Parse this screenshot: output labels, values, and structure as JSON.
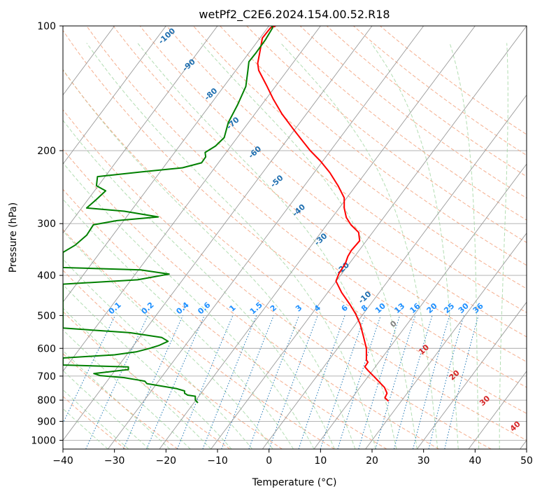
{
  "chart_data": {
    "type": "line",
    "subtype": "skew-T log-p diagram",
    "title": "wetPf2_C2E6.2024.154.00.52.R18",
    "xlabel": "Temperature (°C)",
    "ylabel": "Pressure (hPa)",
    "xlim": [
      -40,
      50
    ],
    "ylim": [
      1050,
      100
    ],
    "y_scale": "log",
    "grid": true,
    "x_ticks": [
      "−40",
      "−30",
      "−20",
      "−10",
      "0",
      "10",
      "20",
      "30",
      "40",
      "50"
    ],
    "y_ticks": [
      "100",
      "200",
      "300",
      "400",
      "500",
      "600",
      "700",
      "800",
      "900",
      "1000"
    ],
    "x_tick_values": [
      -40,
      -30,
      -20,
      -10,
      0,
      10,
      20,
      30,
      40,
      50
    ],
    "y_tick_values": [
      100,
      200,
      300,
      400,
      500,
      600,
      700,
      800,
      900,
      1000
    ],
    "series": [
      {
        "color": "#ff0000",
        "note": "temperature profile (x = temperature in °C at the plotted axis position, p in hPa)",
        "points": [
          [
            23.2,
            805
          ],
          [
            22.5,
            790
          ],
          [
            22.9,
            770
          ],
          [
            22.4,
            745
          ],
          [
            21.7,
            730
          ],
          [
            20.3,
            700
          ],
          [
            19.3,
            680
          ],
          [
            18.6,
            665
          ],
          [
            19.2,
            648
          ],
          [
            18.9,
            640
          ],
          [
            18.9,
            600
          ],
          [
            18.3,
            560
          ],
          [
            17.7,
            525
          ],
          [
            16.8,
            495
          ],
          [
            15.7,
            470
          ],
          [
            14.1,
            440
          ],
          [
            13.0,
            413
          ],
          [
            13.6,
            395
          ],
          [
            14.8,
            375
          ],
          [
            15.3,
            360
          ],
          [
            16.0,
            348
          ],
          [
            17.6,
            330
          ],
          [
            17.4,
            315
          ],
          [
            15.9,
            302
          ],
          [
            15.0,
            290
          ],
          [
            14.6,
            275
          ],
          [
            14.6,
            260
          ],
          [
            13.4,
            243
          ],
          [
            11.8,
            226
          ],
          [
            10.0,
            212
          ],
          [
            8.0,
            200
          ],
          [
            6.3,
            188
          ],
          [
            4.5,
            176
          ],
          [
            2.5,
            163
          ],
          [
            0.8,
            150
          ],
          [
            -0.5,
            139
          ],
          [
            -2.0,
            128
          ],
          [
            -2.2,
            123
          ],
          [
            -1.8,
            116
          ],
          [
            -1.3,
            107
          ],
          [
            0.3,
            101
          ],
          [
            1.3,
            100
          ]
        ]
      },
      {
        "color": "#008000",
        "note": "dewpoint profile (x = temperature in °C at the plotted axis position, p in hPa)",
        "points": [
          [
            -13.8,
            812
          ],
          [
            -14.3,
            800
          ],
          [
            -14.3,
            783
          ],
          [
            -15.8,
            778
          ],
          [
            -16.4,
            770
          ],
          [
            -16.4,
            760
          ],
          [
            -18.0,
            750
          ],
          [
            -23.7,
            730
          ],
          [
            -24.1,
            720
          ],
          [
            -25.5,
            715
          ],
          [
            -28.2,
            706
          ],
          [
            -32.8,
            698
          ],
          [
            -34.0,
            690
          ],
          [
            -27.3,
            675
          ],
          [
            -27.3,
            665
          ],
          [
            -40.0,
            658
          ],
          [
            -40.0,
            633
          ],
          [
            -30.0,
            622
          ],
          [
            -25.8,
            612
          ],
          [
            -23.2,
            600
          ],
          [
            -21.3,
            590
          ],
          [
            -19.6,
            577
          ],
          [
            -20.8,
            565
          ],
          [
            -27.0,
            550
          ],
          [
            -40.0,
            536
          ],
          [
            -40.0,
            420
          ],
          [
            -25.5,
            410
          ],
          [
            -19.4,
            397
          ],
          [
            -24.9,
            388
          ],
          [
            -40.0,
            383
          ],
          [
            -40.0,
            352
          ],
          [
            -37.6,
            338
          ],
          [
            -35.4,
            320
          ],
          [
            -34.1,
            302
          ],
          [
            -29.5,
            295
          ],
          [
            -21.5,
            289
          ],
          [
            -28.1,
            280
          ],
          [
            -35.4,
            275
          ],
          [
            -33.6,
            263
          ],
          [
            -31.7,
            250
          ],
          [
            -33.5,
            243
          ],
          [
            -33.3,
            231
          ],
          [
            -24.6,
            225
          ],
          [
            -16.8,
            220
          ],
          [
            -13.1,
            214
          ],
          [
            -12.3,
            207
          ],
          [
            -12.4,
            202
          ],
          [
            -10.4,
            195
          ],
          [
            -8.7,
            186
          ],
          [
            -7.9,
            171
          ],
          [
            -6.1,
            155
          ],
          [
            -4.5,
            140
          ],
          [
            -4.1,
            128
          ],
          [
            -3.9,
            122
          ],
          [
            -2.5,
            116
          ],
          [
            -0.7,
            108
          ],
          [
            0.7,
            101
          ],
          [
            0.5,
            100
          ]
        ]
      }
    ],
    "annotations": {
      "dry_adiabats": [
        "-100",
        "-90",
        "-80",
        "-70",
        "-60",
        "-50",
        "-40",
        "-30",
        "-20",
        "-10"
      ],
      "mixing_ratio": [
        "0.1",
        "0.2",
        "0.4",
        "0.6",
        "1",
        "1.5",
        "2",
        "3",
        "4",
        "6",
        "8",
        "10",
        "13",
        "16",
        "20",
        "25",
        "30",
        "36"
      ],
      "moist_adiabats": [
        "0",
        "10",
        "20",
        "30",
        "40"
      ]
    },
    "colors": {
      "temperature": "#ff0000",
      "dewpoint": "#008000",
      "isotherm": "#9a9a9a",
      "isobar": "#a9a9a9",
      "dry_adiabat": "#f4a582",
      "moist_adiabat": "#9fd49f",
      "mixing_ratio": "#1f77b4",
      "dry_adiabat_label": "#1f6fb0",
      "mixing_ratio_label": "#1e90ff",
      "moist_label": "#d62728",
      "zero_label": "#808080"
    }
  }
}
